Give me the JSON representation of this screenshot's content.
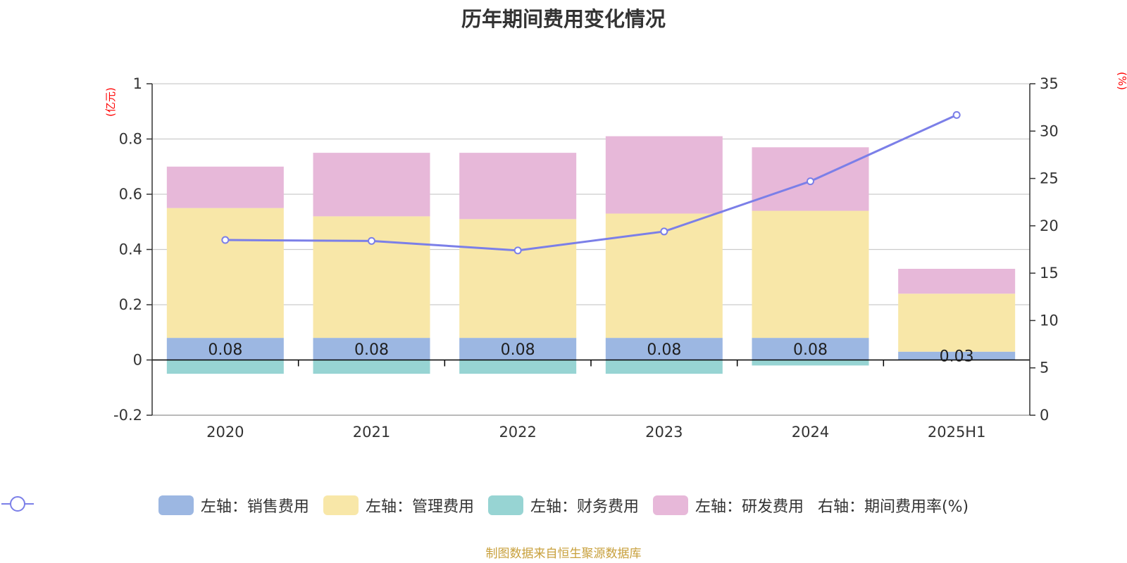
{
  "chart_data": {
    "type": "bar",
    "title": "历年期间费用变化情况",
    "left_unit": "(亿元)",
    "right_unit": "(%)",
    "categories": [
      "2020",
      "2021",
      "2022",
      "2023",
      "2024",
      "2025H1"
    ],
    "left_ylim": [
      -0.2,
      1
    ],
    "left_ticks": [
      "1",
      "0.8",
      "0.6",
      "0.4",
      "0.2",
      "0",
      "-0.2"
    ],
    "right_ylim": [
      0,
      35
    ],
    "right_ticks": [
      "35",
      "30",
      "25",
      "20",
      "15",
      "10",
      "5",
      "0"
    ],
    "grid": true,
    "legend_position": "bottom",
    "series": [
      {
        "name": "左轴：销售费用",
        "axis": "left",
        "color": "#9cb7e2",
        "values": [
          0.08,
          0.08,
          0.08,
          0.08,
          0.08,
          0.03
        ],
        "labels": [
          "0.08",
          "0.08",
          "0.08",
          "0.08",
          "0.08",
          "0.03"
        ]
      },
      {
        "name": "左轴：管理费用",
        "axis": "left",
        "color": "#f8e7a8",
        "values": [
          0.47,
          0.44,
          0.43,
          0.45,
          0.46,
          0.21
        ]
      },
      {
        "name": "左轴：财务费用",
        "axis": "left",
        "color": "#97d4d3",
        "values": [
          -0.05,
          -0.05,
          -0.05,
          -0.05,
          -0.02,
          0.0
        ]
      },
      {
        "name": "左轴：研发费用",
        "axis": "left",
        "color": "#e7b8d9",
        "values": [
          0.15,
          0.23,
          0.24,
          0.28,
          0.23,
          0.09
        ]
      },
      {
        "name": "右轴：期间费用率(%)",
        "axis": "right",
        "type": "line",
        "color": "#7b7fe8",
        "values": [
          18.5,
          18.4,
          17.4,
          19.4,
          24.7,
          31.7
        ]
      }
    ]
  },
  "source_note": "制图数据来自恒生聚源数据库"
}
